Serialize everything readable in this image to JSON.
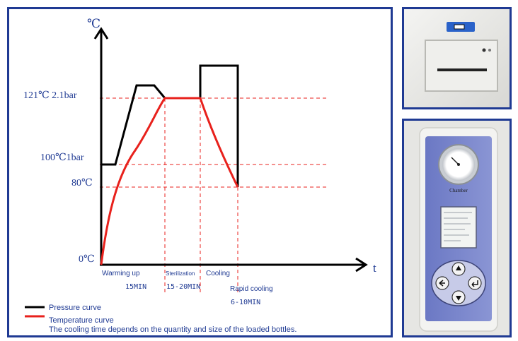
{
  "chart": {
    "y_unit": "℃",
    "x_unit": "t",
    "y_labels": {
      "t121": "121℃ 2.1bar",
      "t100": "100℃1bar",
      "t80": "80℃",
      "t0": "0℃"
    },
    "phases": {
      "warming": "Warming up",
      "warming_time": "15MIN",
      "sterilization": "Sterilization",
      "sterilization_time": "15-20MIN",
      "cooling": "Cooling",
      "rapid_cooling": "Rapid cooling",
      "rapid_time": "6-10MIN"
    },
    "legend": {
      "pressure": "Pressure curve",
      "temperature": "Temperature curve",
      "note": "The cooling time depends on the quantity and size of the loaded bottles."
    },
    "colors": {
      "pressure": "#000000",
      "temperature": "#e8211c",
      "label": "#1f3a93",
      "guide": "#e8211c"
    }
  },
  "control_panel": {
    "gauge_label": "Chamber"
  }
}
